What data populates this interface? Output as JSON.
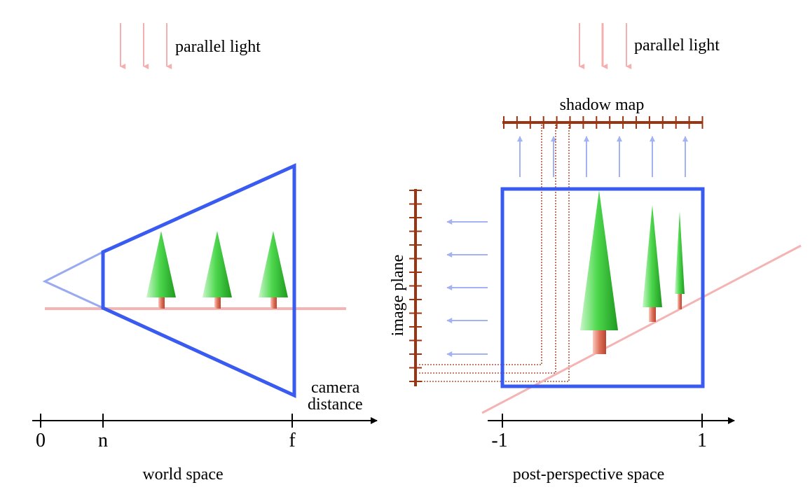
{
  "colors": {
    "frustum": "#3a5bf0",
    "frustum_light": "#9aaaf0",
    "ground": "#f4b4b4",
    "light_arrow": "#f4b0b0",
    "blue_arrow": "#a3b2f2",
    "shadow_map": "#9a3412",
    "dotted": "#9a3412",
    "tree_green": "#3ecb3e",
    "trunk": "#e07a6a"
  },
  "left_panel": {
    "light_label": "parallel light",
    "axis_label": "camera\ndistance",
    "axis_label_line1": "camera",
    "axis_label_line2": "distance",
    "ticks": [
      "0",
      "n",
      "f"
    ],
    "caption": "world space"
  },
  "right_panel": {
    "light_label": "parallel light",
    "shadow_map_label": "shadow map",
    "image_plane_label": "image plane",
    "ticks": [
      "-1",
      "1"
    ],
    "caption": "post-perspective space"
  },
  "icons": {
    "tree": "conifer-tree-icon",
    "arrow": "arrow-icon"
  }
}
